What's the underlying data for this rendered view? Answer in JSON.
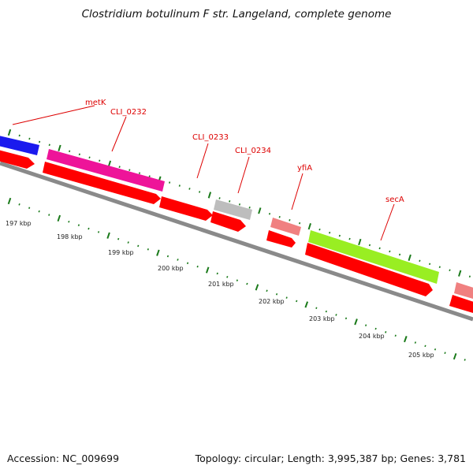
{
  "title": "Clostridium botulinum F str. Langeland, complete genome",
  "footer": {
    "accession": "Accession: NC_009699",
    "summary": "Topology: circular; Length: 3,995,387 bp; Genes: 3,781"
  },
  "colors": {
    "backbone": "#8a8a8a",
    "cds": "#ff0000",
    "tick": "#1a7a1a",
    "label": "#dd0000"
  },
  "genes": [
    {
      "name": "metK",
      "color": "#1a1aee"
    },
    {
      "name": "CLI_0232",
      "color": "#ee1499"
    },
    {
      "name": "CLI_0233",
      "color": ""
    },
    {
      "name": "CLI_0234",
      "color": "#bdbdbd"
    },
    {
      "name": "yfiA",
      "color": "#f08080"
    },
    {
      "name": "secA",
      "color": "#99ee22"
    },
    {
      "name": "",
      "color": "#f08080"
    }
  ],
  "kbp_labels": [
    "197 kbp",
    "198 kbp",
    "199 kbp",
    "200 kbp",
    "201 kbp",
    "202 kbp",
    "203 kbp",
    "204 kbp",
    "205 kbp"
  ]
}
